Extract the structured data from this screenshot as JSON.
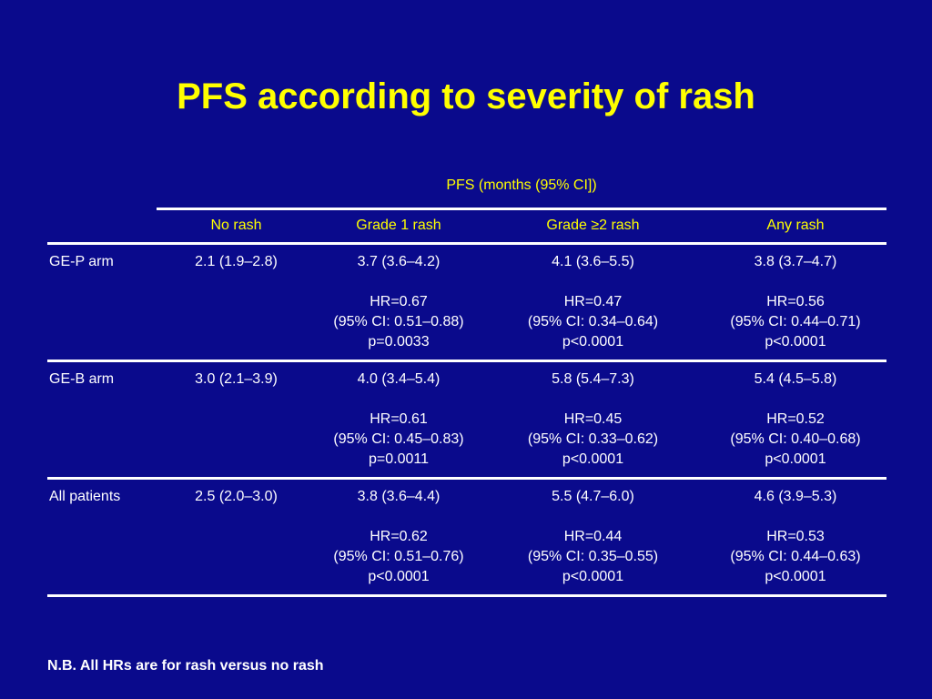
{
  "title": "PFS according to severity of rash",
  "table": {
    "group_header": "PFS (months (95% CI])",
    "columns": [
      "No rash",
      "Grade 1 rash",
      "Grade ≥2 rash",
      "Any rash"
    ],
    "rows": [
      {
        "label": "GE-P arm",
        "no_rash": "2.1 (1.9–2.8)",
        "cells": [
          {
            "pfs": "3.7 (3.6–4.2)",
            "hr": "HR=0.67",
            "ci": "(95% CI: 0.51–0.88)",
            "p": "p=0.0033"
          },
          {
            "pfs": "4.1 (3.6–5.5)",
            "hr": "HR=0.47",
            "ci": "(95% CI: 0.34–0.64)",
            "p": "p<0.0001"
          },
          {
            "pfs": "3.8 (3.7–4.7)",
            "hr": "HR=0.56",
            "ci": "(95% CI: 0.44–0.71)",
            "p": "p<0.0001"
          }
        ]
      },
      {
        "label": "GE-B arm",
        "no_rash": "3.0 (2.1–3.9)",
        "cells": [
          {
            "pfs": "4.0 (3.4–5.4)",
            "hr": "HR=0.61",
            "ci": "(95% CI: 0.45–0.83)",
            "p": "p=0.0011"
          },
          {
            "pfs": "5.8 (5.4–7.3)",
            "hr": "HR=0.45",
            "ci": "(95% CI: 0.33–0.62)",
            "p": "p<0.0001"
          },
          {
            "pfs": "5.4 (4.5–5.8)",
            "hr": "HR=0.52",
            "ci": "(95% CI: 0.40–0.68)",
            "p": "p<0.0001"
          }
        ]
      },
      {
        "label": "All patients",
        "no_rash": "2.5 (2.0–3.0)",
        "cells": [
          {
            "pfs": "3.8 (3.6–4.4)",
            "hr": "HR=0.62",
            "ci": "(95% CI: 0.51–0.76)",
            "p": "p<0.0001"
          },
          {
            "pfs": "5.5 (4.7–6.0)",
            "hr": "HR=0.44",
            "ci": "(95% CI: 0.35–0.55)",
            "p": "p<0.0001"
          },
          {
            "pfs": "4.6 (3.9–5.3)",
            "hr": "HR=0.53",
            "ci": "(95% CI: 0.44–0.63)",
            "p": "p<0.0001"
          }
        ]
      }
    ]
  },
  "footnote": "N.B. All HRs are for rash versus no rash",
  "colors": {
    "background": "#0a0a8c",
    "title": "#ffff00",
    "header_text": "#ffff00",
    "body_text": "#ffffff",
    "rules": "#ffffff"
  }
}
